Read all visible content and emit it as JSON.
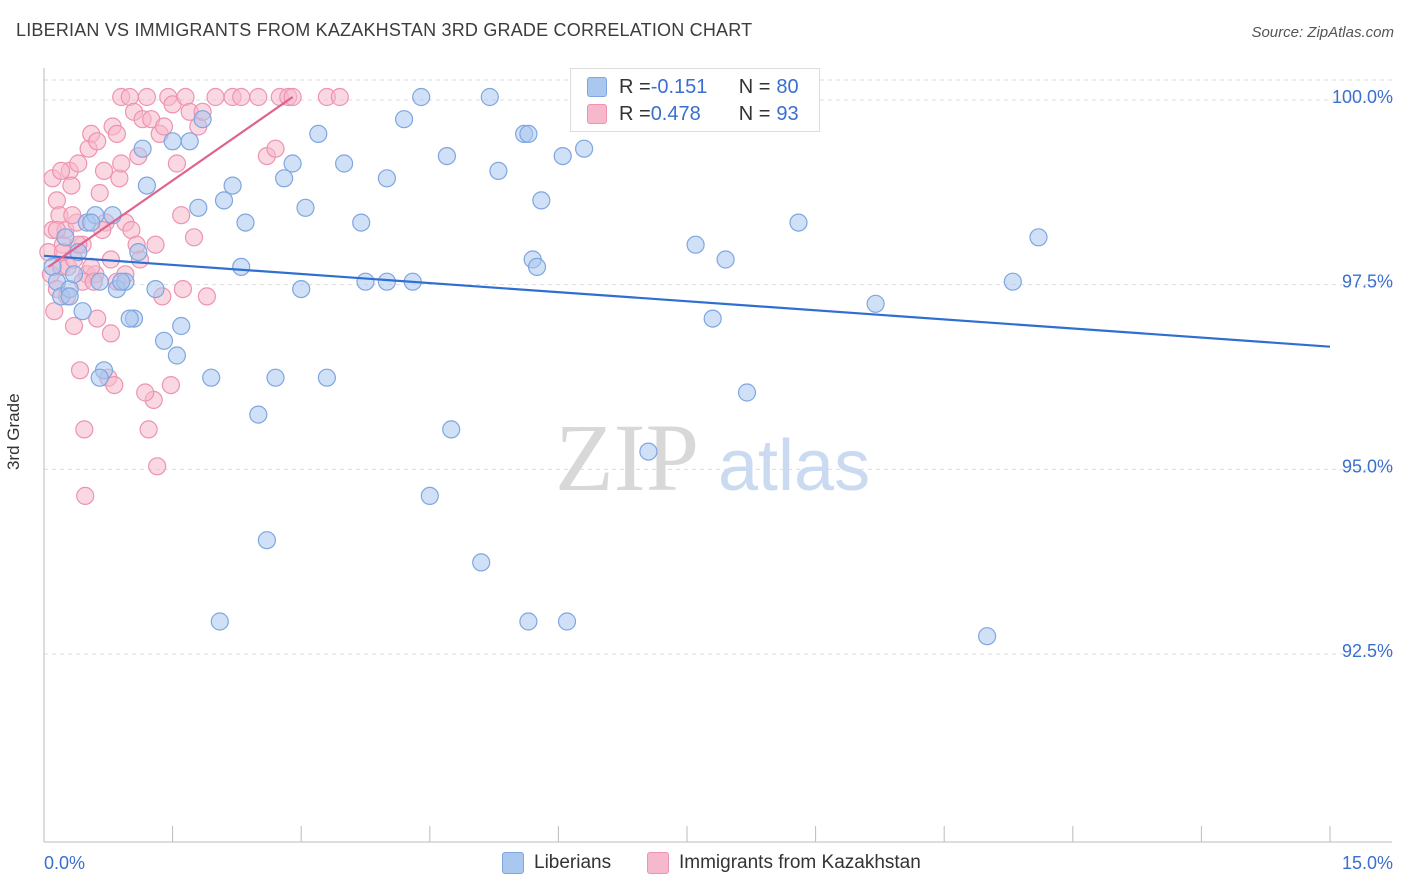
{
  "title": "LIBERIAN VS IMMIGRANTS FROM KAZAKHSTAN 3RD GRADE CORRELATION CHART",
  "source": "Source: ZipAtlas.com",
  "watermark": {
    "zip": "ZIP",
    "atlas": "atlas"
  },
  "legend_top": {
    "rows": [
      {
        "r_label": "R = ",
        "r_value": "-0.151",
        "n_label": "N = ",
        "n_value": "80"
      },
      {
        "r_label": "R = ",
        "r_value": "0.478",
        "n_label": "N = ",
        "n_value": "93"
      }
    ]
  },
  "legend_bottom": {
    "series1": "Liberians",
    "series2": "Immigrants from Kazakhstan"
  },
  "colors": {
    "blue_fill": "#a9c7ef",
    "blue_stroke": "#7fa6e0",
    "blue_line": "#2f6fd0",
    "pink_fill": "#f6b8cb",
    "pink_stroke": "#ee93b1",
    "pink_line": "#e0628e",
    "axis_text": "#3a6fd0",
    "grid": "#dddddd"
  },
  "chart_data": {
    "type": "scatter",
    "title": "LIBERIAN VS IMMIGRANTS FROM KAZAKHSTAN 3RD GRADE CORRELATION CHART",
    "xlabel": "",
    "ylabel": "3rd Grade",
    "xlim": [
      0,
      15
    ],
    "ylim": [
      90.0,
      100.2
    ],
    "x_tick_labels": [
      "0.0%",
      "15.0%"
    ],
    "y_ticks": [
      92.5,
      95.0,
      97.5,
      100.0
    ],
    "y_tick_labels": [
      "92.5%",
      "95.0%",
      "97.5%",
      "100.0%"
    ],
    "grid": true,
    "legend": "top-center",
    "series": [
      {
        "name": "Liberians",
        "stats": {
          "R": -0.151,
          "N": 80
        },
        "trend": {
          "x": [
            0.0,
            15.0
          ],
          "y": [
            97.85,
            96.62
          ]
        },
        "points": [
          [
            0.1,
            97.7
          ],
          [
            0.15,
            97.5
          ],
          [
            0.2,
            97.3
          ],
          [
            0.25,
            98.1
          ],
          [
            0.3,
            97.4
          ],
          [
            0.35,
            97.6
          ],
          [
            0.4,
            97.9
          ],
          [
            0.45,
            97.1
          ],
          [
            0.5,
            98.3
          ],
          [
            0.6,
            98.4
          ],
          [
            0.65,
            97.5
          ],
          [
            0.7,
            96.3
          ],
          [
            0.8,
            98.4
          ],
          [
            0.85,
            97.4
          ],
          [
            0.95,
            97.5
          ],
          [
            1.05,
            97.0
          ],
          [
            1.1,
            97.9
          ],
          [
            1.2,
            98.8
          ],
          [
            1.4,
            96.7
          ],
          [
            1.5,
            99.4
          ],
          [
            1.6,
            96.9
          ],
          [
            1.7,
            99.4
          ],
          [
            1.8,
            98.5
          ],
          [
            1.85,
            99.7
          ],
          [
            1.95,
            96.2
          ],
          [
            2.1,
            98.6
          ],
          [
            2.2,
            98.8
          ],
          [
            2.3,
            97.7
          ],
          [
            2.35,
            98.3
          ],
          [
            2.5,
            95.7
          ],
          [
            2.6,
            94.0
          ],
          [
            2.7,
            96.2
          ],
          [
            2.8,
            98.9
          ],
          [
            2.9,
            99.1
          ],
          [
            3.0,
            97.4
          ],
          [
            3.05,
            98.5
          ],
          [
            3.2,
            99.5
          ],
          [
            3.3,
            96.2
          ],
          [
            3.5,
            99.1
          ],
          [
            3.7,
            98.3
          ],
          [
            3.75,
            97.5
          ],
          [
            4.0,
            98.9
          ],
          [
            4.0,
            97.5
          ],
          [
            4.2,
            99.7
          ],
          [
            4.4,
            100.0
          ],
          [
            4.5,
            94.6
          ],
          [
            4.3,
            97.5
          ],
          [
            4.7,
            99.2
          ],
          [
            4.75,
            95.5
          ],
          [
            5.1,
            93.7
          ],
          [
            5.2,
            100.0
          ],
          [
            5.3,
            99.0
          ],
          [
            5.6,
            99.5
          ],
          [
            5.65,
            99.5
          ],
          [
            5.7,
            97.8
          ],
          [
            5.65,
            92.9
          ],
          [
            5.75,
            97.7
          ],
          [
            5.8,
            98.6
          ],
          [
            6.05,
            99.2
          ],
          [
            6.1,
            92.9
          ],
          [
            6.3,
            99.3
          ],
          [
            7.05,
            95.2
          ],
          [
            7.6,
            98.0
          ],
          [
            7.8,
            97.0
          ],
          [
            7.95,
            97.8
          ],
          [
            8.2,
            96.0
          ],
          [
            8.8,
            98.3
          ],
          [
            9.7,
            97.2
          ],
          [
            11.0,
            92.7
          ],
          [
            11.3,
            97.5
          ],
          [
            11.6,
            98.1
          ],
          [
            1.0,
            97.0
          ],
          [
            0.3,
            97.3
          ],
          [
            0.55,
            98.3
          ],
          [
            0.9,
            97.5
          ],
          [
            1.15,
            99.3
          ],
          [
            1.3,
            97.4
          ],
          [
            1.55,
            96.5
          ],
          [
            2.05,
            92.9
          ],
          [
            0.65,
            96.2
          ]
        ]
      },
      {
        "name": "Immigrants from Kazakhstan",
        "stats": {
          "R": 0.478,
          "N": 93
        },
        "trend": {
          "x": [
            0.05,
            2.9
          ],
          "y": [
            97.7,
            100.0
          ]
        },
        "points": [
          [
            0.05,
            97.9
          ],
          [
            0.08,
            97.6
          ],
          [
            0.1,
            98.2
          ],
          [
            0.12,
            97.1
          ],
          [
            0.15,
            98.6
          ],
          [
            0.15,
            97.4
          ],
          [
            0.18,
            98.4
          ],
          [
            0.2,
            97.7
          ],
          [
            0.22,
            98.0
          ],
          [
            0.25,
            98.2
          ],
          [
            0.28,
            97.7
          ],
          [
            0.3,
            99.0
          ],
          [
            0.32,
            98.8
          ],
          [
            0.35,
            97.8
          ],
          [
            0.35,
            96.9
          ],
          [
            0.38,
            98.3
          ],
          [
            0.4,
            99.1
          ],
          [
            0.42,
            96.3
          ],
          [
            0.45,
            98.0
          ],
          [
            0.47,
            95.5
          ],
          [
            0.48,
            94.6
          ],
          [
            0.5,
            97.6
          ],
          [
            0.52,
            99.3
          ],
          [
            0.55,
            99.5
          ],
          [
            0.6,
            97.6
          ],
          [
            0.62,
            99.4
          ],
          [
            0.65,
            98.7
          ],
          [
            0.7,
            99.0
          ],
          [
            0.72,
            98.3
          ],
          [
            0.75,
            96.2
          ],
          [
            0.78,
            97.8
          ],
          [
            0.8,
            99.6
          ],
          [
            0.82,
            96.1
          ],
          [
            0.85,
            99.5
          ],
          [
            0.88,
            98.9
          ],
          [
            0.9,
            99.1
          ],
          [
            0.9,
            100.0
          ],
          [
            0.95,
            98.3
          ],
          [
            1.0,
            100.0
          ],
          [
            1.02,
            98.2
          ],
          [
            1.05,
            99.8
          ],
          [
            1.1,
            99.2
          ],
          [
            1.12,
            97.8
          ],
          [
            1.15,
            99.7
          ],
          [
            1.2,
            100.0
          ],
          [
            1.22,
            95.5
          ],
          [
            1.25,
            99.7
          ],
          [
            1.28,
            95.9
          ],
          [
            1.3,
            98.0
          ],
          [
            1.32,
            95.0
          ],
          [
            1.35,
            99.5
          ],
          [
            1.4,
            99.6
          ],
          [
            1.45,
            100.0
          ],
          [
            1.5,
            99.9
          ],
          [
            1.55,
            99.1
          ],
          [
            1.6,
            98.4
          ],
          [
            1.62,
            97.4
          ],
          [
            1.65,
            100.0
          ],
          [
            1.7,
            99.8
          ],
          [
            1.75,
            98.1
          ],
          [
            1.8,
            99.6
          ],
          [
            1.85,
            99.8
          ],
          [
            1.9,
            97.3
          ],
          [
            2.2,
            100.0
          ],
          [
            2.3,
            100.0
          ],
          [
            2.5,
            100.0
          ],
          [
            2.6,
            99.2
          ],
          [
            2.7,
            99.3
          ],
          [
            2.75,
            100.0
          ],
          [
            2.85,
            100.0
          ],
          [
            2.9,
            100.0
          ],
          [
            3.3,
            100.0
          ],
          [
            3.45,
            100.0
          ],
          [
            0.1,
            98.9
          ],
          [
            0.2,
            99.0
          ],
          [
            0.4,
            98.0
          ],
          [
            0.55,
            97.7
          ],
          [
            0.68,
            98.2
          ],
          [
            0.85,
            97.5
          ],
          [
            0.95,
            97.6
          ],
          [
            1.08,
            98.0
          ],
          [
            1.18,
            96.0
          ],
          [
            1.38,
            97.3
          ],
          [
            0.27,
            97.3
          ],
          [
            0.45,
            97.5
          ],
          [
            0.62,
            97.0
          ],
          [
            0.78,
            96.8
          ],
          [
            0.15,
            98.2
          ],
          [
            0.22,
            97.9
          ],
          [
            1.48,
            96.1
          ],
          [
            2.0,
            100.0
          ],
          [
            0.33,
            98.4
          ],
          [
            0.58,
            97.5
          ]
        ]
      }
    ]
  }
}
